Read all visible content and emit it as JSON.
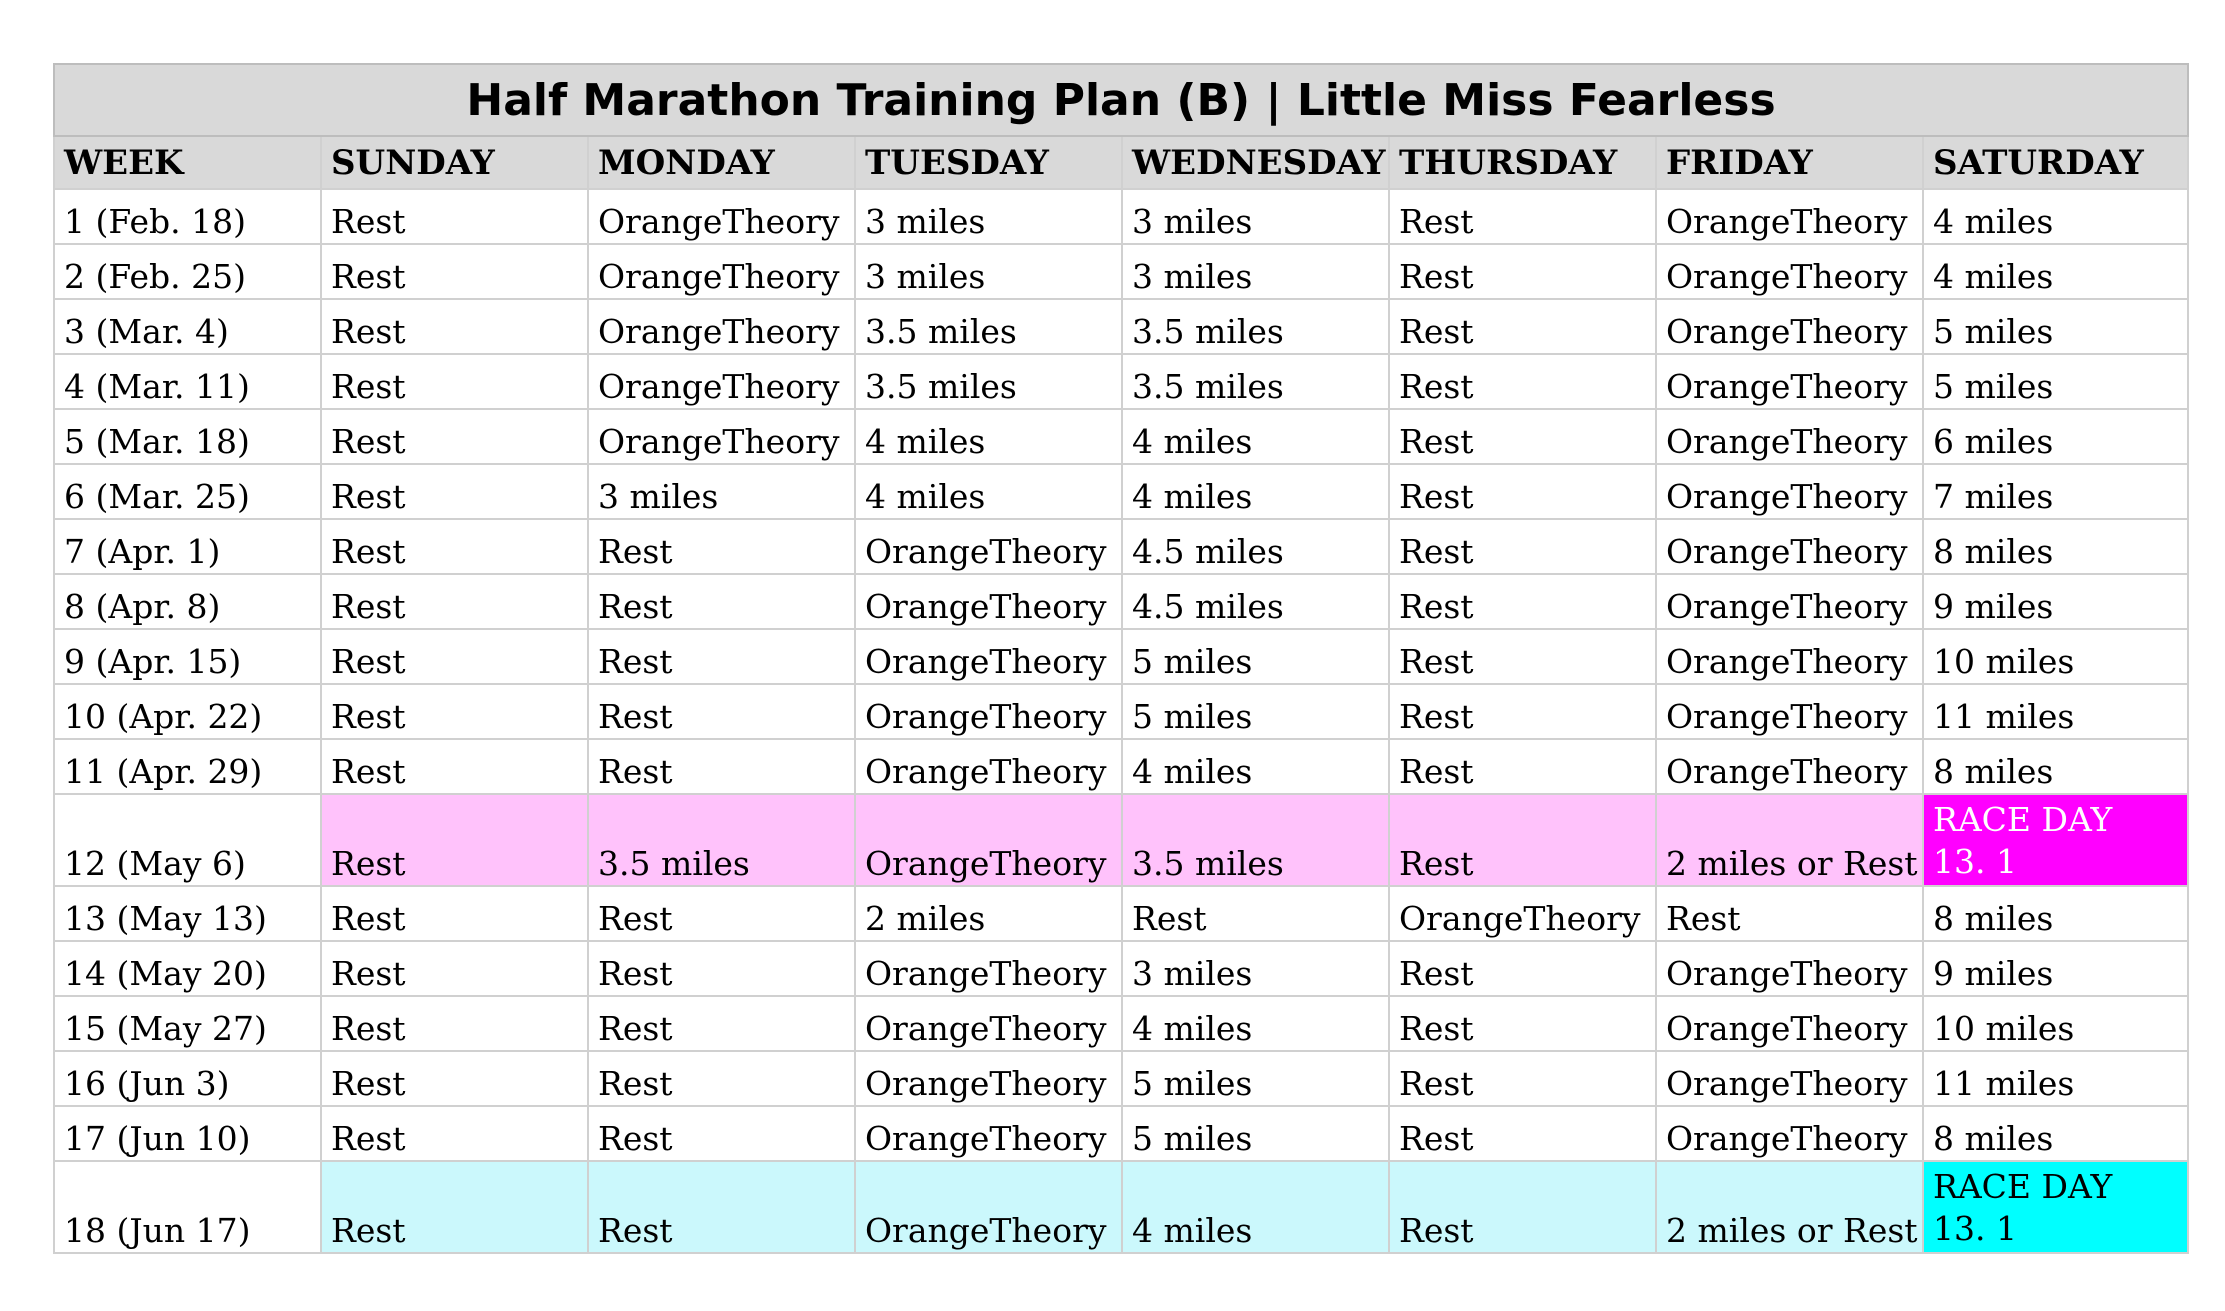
{
  "title": "Half Marathon Training Plan (B) | Little Miss Fearless",
  "headers": [
    "WEEK",
    "SUNDAY",
    "MONDAY",
    "TUESDAY",
    "WEDNESDAY",
    "THURSDAY",
    "FRIDAY",
    "SATURDAY"
  ],
  "colors": {
    "header_bg": "#d9d9d9",
    "grid": "#d0d0d0",
    "race1_row_bg": "#ffc2fb",
    "race1_cell_bg": "#ff00ff",
    "race2_row_bg": "#cbf8fc",
    "race2_cell_bg": "#00ffff",
    "race_cell_text_race1": "#ffffff",
    "race_cell_text_race2": "#000000"
  },
  "rows": [
    {
      "week": "1 (Feb. 18)",
      "days": [
        "Rest",
        "OrangeTheory",
        "3 miles",
        "3 miles",
        "Rest",
        "OrangeTheory",
        "4 miles"
      ]
    },
    {
      "week": "2 (Feb. 25)",
      "days": [
        "Rest",
        "OrangeTheory",
        "3 miles",
        "3 miles",
        "Rest",
        "OrangeTheory",
        "4 miles"
      ]
    },
    {
      "week": "3 (Mar. 4)",
      "days": [
        "Rest",
        "OrangeTheory",
        "3.5 miles",
        "3.5 miles",
        "Rest",
        "OrangeTheory",
        "5 miles"
      ]
    },
    {
      "week": "4 (Mar. 11)",
      "days": [
        "Rest",
        "OrangeTheory",
        "3.5 miles",
        "3.5 miles",
        "Rest",
        "OrangeTheory",
        "5 miles"
      ]
    },
    {
      "week": "5 (Mar. 18)",
      "days": [
        "Rest",
        "OrangeTheory",
        "4 miles",
        "4 miles",
        "Rest",
        "OrangeTheory",
        "6 miles"
      ]
    },
    {
      "week": "6 (Mar. 25)",
      "days": [
        "Rest",
        "3 miles",
        "4 miles",
        "4 miles",
        "Rest",
        "OrangeTheory",
        "7 miles"
      ]
    },
    {
      "week": "7 (Apr. 1)",
      "days": [
        "Rest",
        "Rest",
        "OrangeTheory",
        "4.5 miles",
        "Rest",
        "OrangeTheory",
        "8 miles"
      ]
    },
    {
      "week": "8 (Apr. 8)",
      "days": [
        "Rest",
        "Rest",
        "OrangeTheory",
        "4.5 miles",
        "Rest",
        "OrangeTheory",
        "9 miles"
      ]
    },
    {
      "week": "9 (Apr. 15)",
      "days": [
        "Rest",
        "Rest",
        "OrangeTheory",
        "5 miles",
        "Rest",
        "OrangeTheory",
        "10 miles"
      ]
    },
    {
      "week": "10 (Apr. 22)",
      "days": [
        "Rest",
        "Rest",
        "OrangeTheory",
        "5 miles",
        "Rest",
        "OrangeTheory",
        "11 miles"
      ]
    },
    {
      "week": "11 (Apr. 29)",
      "days": [
        "Rest",
        "Rest",
        "OrangeTheory",
        "4 miles",
        "Rest",
        "OrangeTheory",
        "8 miles"
      ]
    },
    {
      "week": "12 (May 6)",
      "days": [
        "Rest",
        "3.5 miles",
        "OrangeTheory",
        "3.5 miles",
        "Rest",
        "2 miles or Rest"
      ],
      "race": {
        "label": "RACE DAY",
        "distance": "13. 1",
        "style": "race1"
      }
    },
    {
      "week": "13 (May 13)",
      "days": [
        "Rest",
        "Rest",
        "2 miles",
        "Rest",
        "OrangeTheory",
        "Rest",
        "8 miles"
      ]
    },
    {
      "week": "14 (May 20)",
      "days": [
        "Rest",
        "Rest",
        "OrangeTheory",
        "3 miles",
        "Rest",
        "OrangeTheory",
        "9 miles"
      ]
    },
    {
      "week": "15 (May 27)",
      "days": [
        "Rest",
        "Rest",
        "OrangeTheory",
        "4 miles",
        "Rest",
        "OrangeTheory",
        "10 miles"
      ]
    },
    {
      "week": "16 (Jun 3)",
      "days": [
        "Rest",
        "Rest",
        "OrangeTheory",
        "5 miles",
        "Rest",
        "OrangeTheory",
        "11 miles"
      ]
    },
    {
      "week": "17 (Jun 10)",
      "days": [
        "Rest",
        "Rest",
        "OrangeTheory",
        "5 miles",
        "Rest",
        "OrangeTheory",
        "8 miles"
      ]
    },
    {
      "week": "18 (Jun 17)",
      "days": [
        "Rest",
        "Rest",
        "OrangeTheory",
        "4 miles",
        "Rest",
        "2 miles or Rest"
      ],
      "race": {
        "label": "RACE DAY",
        "distance": "13. 1",
        "style": "race2"
      }
    }
  ]
}
